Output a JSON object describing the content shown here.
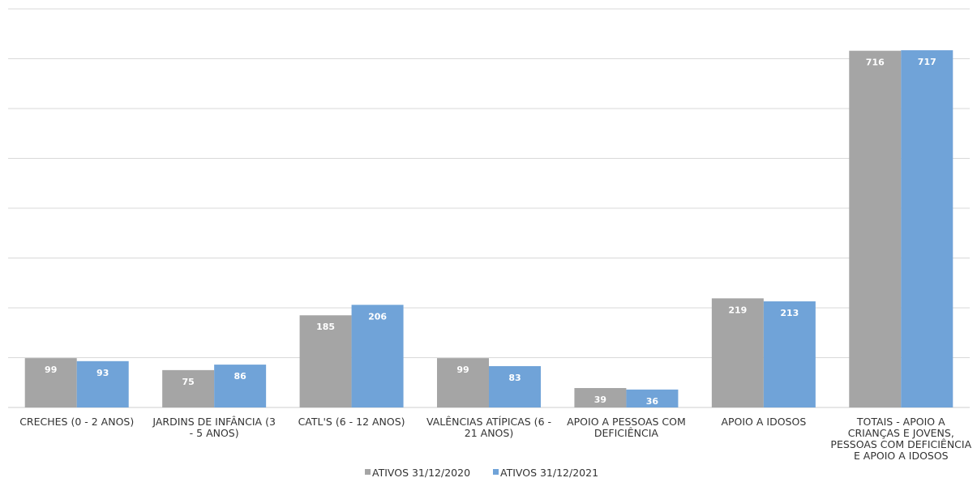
{
  "chart_data": {
    "type": "bar",
    "categories": [
      "CRECHES (0 - 2 ANOS)",
      "JARDINS DE INFÂNCIA (3 - 5 ANOS)",
      "CATL'S (6 - 12 ANOS)",
      "VALÊNCIAS ATÍPICAS (6 - 21 ANOS)",
      "APOIO A PESSOAS COM DEFICIÊNCIA",
      "APOIO A IDOSOS",
      "TOTAIS - APOIO A CRIANÇAS E JOVENS, PESSOAS COM DEFICIÊNCIA E APOIO A IDOSOS"
    ],
    "series": [
      {
        "name": "ATIVOS 31/12/2020",
        "color": "#A5A5A5",
        "values": [
          99,
          75,
          185,
          99,
          39,
          219,
          716
        ]
      },
      {
        "name": "ATIVOS 31/12/2021",
        "color": "#70A3D8",
        "values": [
          93,
          86,
          206,
          83,
          36,
          213,
          717
        ]
      }
    ],
    "ylim": [
      0,
      800
    ],
    "grid": true,
    "legend_position": "bottom",
    "title": "",
    "xlabel": "",
    "ylabel": ""
  }
}
